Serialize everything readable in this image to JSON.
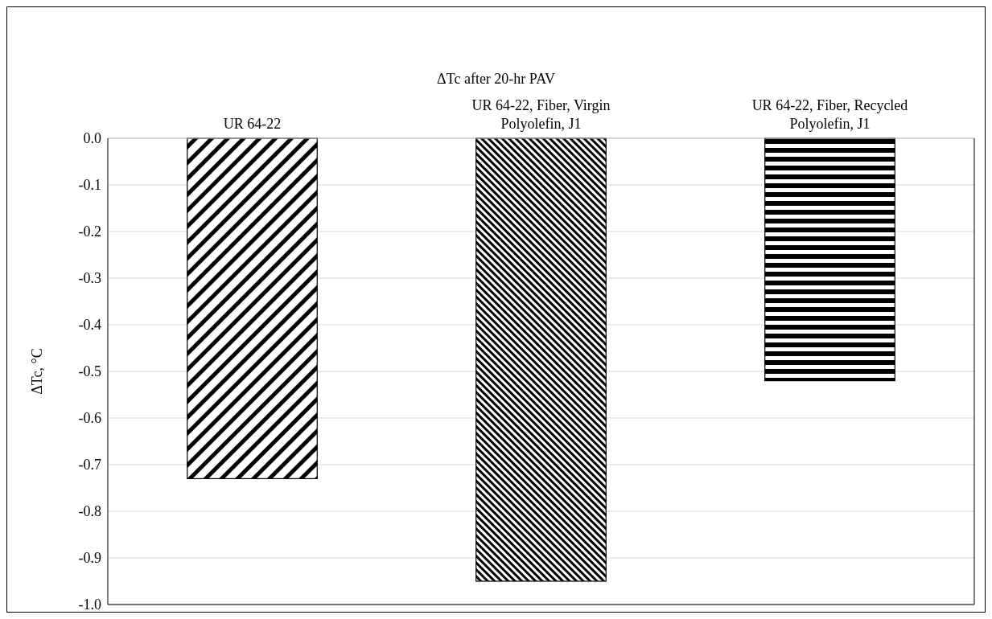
{
  "chart_data": {
    "type": "bar",
    "title": "ΔTc after 20-hr PAV",
    "ylabel": "ΔTc, °C",
    "categories": [
      "UR 64-22",
      "UR 64-22, Fiber, Virgin Polyolefin, J1",
      "UR 64-22, Fiber, Recycled Polyolefin, J1"
    ],
    "values": [
      -0.73,
      -0.95,
      -0.52
    ],
    "colors": [
      "#000000",
      "#000000",
      "#000000"
    ],
    "ylim": [
      -1.0,
      0.0
    ],
    "yticks": [
      {
        "value": 0,
        "label": "0.0"
      },
      -0.1,
      -0.2,
      -0.3,
      -0.4,
      -0.5,
      -0.6,
      -0.7,
      -0.8,
      -0.9,
      {
        "value": -1,
        "label": "-1.0"
      }
    ],
    "grid": "y"
  }
}
